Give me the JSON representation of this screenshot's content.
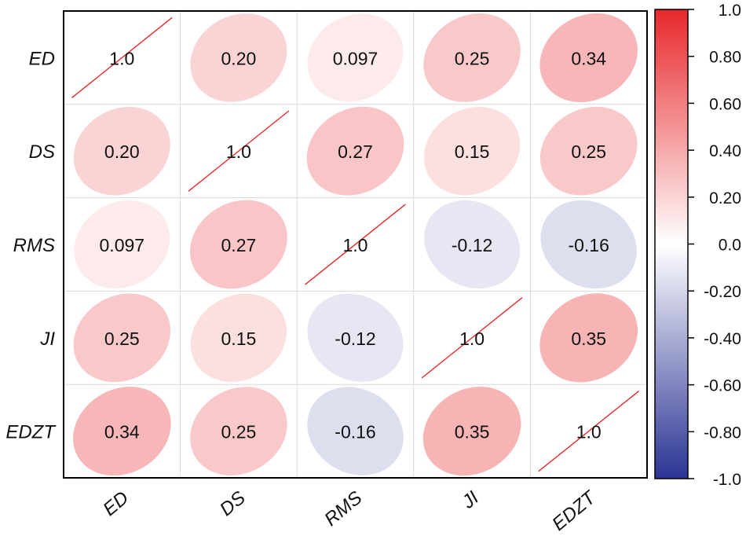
{
  "chart_data": {
    "type": "heatmap",
    "subtype": "correlation-ellipse-matrix",
    "title": "",
    "row_labels": [
      "ED",
      "DS",
      "RMS",
      "JI",
      "EDZT"
    ],
    "col_labels": [
      "ED",
      "DS",
      "RMS",
      "JI",
      "EDZT"
    ],
    "matrix": [
      [
        1.0,
        0.2,
        0.097,
        0.25,
        0.34
      ],
      [
        0.2,
        1.0,
        0.27,
        0.15,
        0.25
      ],
      [
        0.097,
        0.27,
        1.0,
        -0.12,
        -0.16
      ],
      [
        0.25,
        0.15,
        -0.12,
        1.0,
        0.35
      ],
      [
        0.34,
        0.25,
        -0.16,
        0.35,
        1.0
      ]
    ],
    "cell_labels": [
      [
        "1.0",
        "0.20",
        "0.097",
        "0.25",
        "0.34"
      ],
      [
        "0.20",
        "1.0",
        "0.27",
        "0.15",
        "0.25"
      ],
      [
        "0.097",
        "0.27",
        "1.0",
        "-0.12",
        "-0.16"
      ],
      [
        "0.25",
        "0.15",
        "-0.12",
        "1.0",
        "0.35"
      ],
      [
        "0.34",
        "0.25",
        "-0.16",
        "0.35",
        "1.0"
      ]
    ],
    "colorbar": {
      "range": [
        -1.0,
        1.0
      ],
      "ticks": [
        "1.0",
        "0.80",
        "0.60",
        "0.40",
        "0.20",
        "0.0",
        "-0.20",
        "-0.40",
        "-0.60",
        "-0.80",
        "-1.0"
      ],
      "tick_values": [
        1.0,
        0.8,
        0.6,
        0.4,
        0.2,
        0.0,
        -0.2,
        -0.4,
        -0.6,
        -0.8,
        -1.0
      ],
      "color_high": "#e8282b",
      "color_mid": "#ffffff",
      "color_low": "#2b3494"
    },
    "diagonal_line_color": "#e8282b",
    "grid": true
  }
}
